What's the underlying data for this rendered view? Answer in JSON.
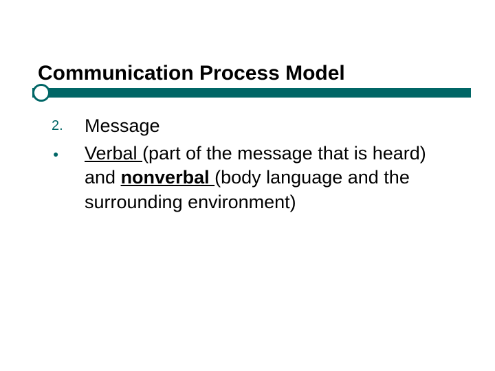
{
  "slide": {
    "title": "Communication Process Model",
    "title_color": "#000000",
    "title_fontsize": 30,
    "accent_color": "#006666",
    "background_color": "#ffffff",
    "items": [
      {
        "marker": "2.",
        "marker_type": "number",
        "text_parts": [
          {
            "text": "Message",
            "style": "plain"
          }
        ]
      },
      {
        "marker": "●",
        "marker_type": "bullet",
        "text_parts": [
          {
            "text": "Verbal ",
            "style": "underlined"
          },
          {
            "text": "(part of the message that is heard) and ",
            "style": "plain"
          },
          {
            "text": "nonverbal ",
            "style": "bold-underlined"
          },
          {
            "text": "(body language and the surrounding environment)",
            "style": "plain"
          }
        ]
      }
    ]
  }
}
